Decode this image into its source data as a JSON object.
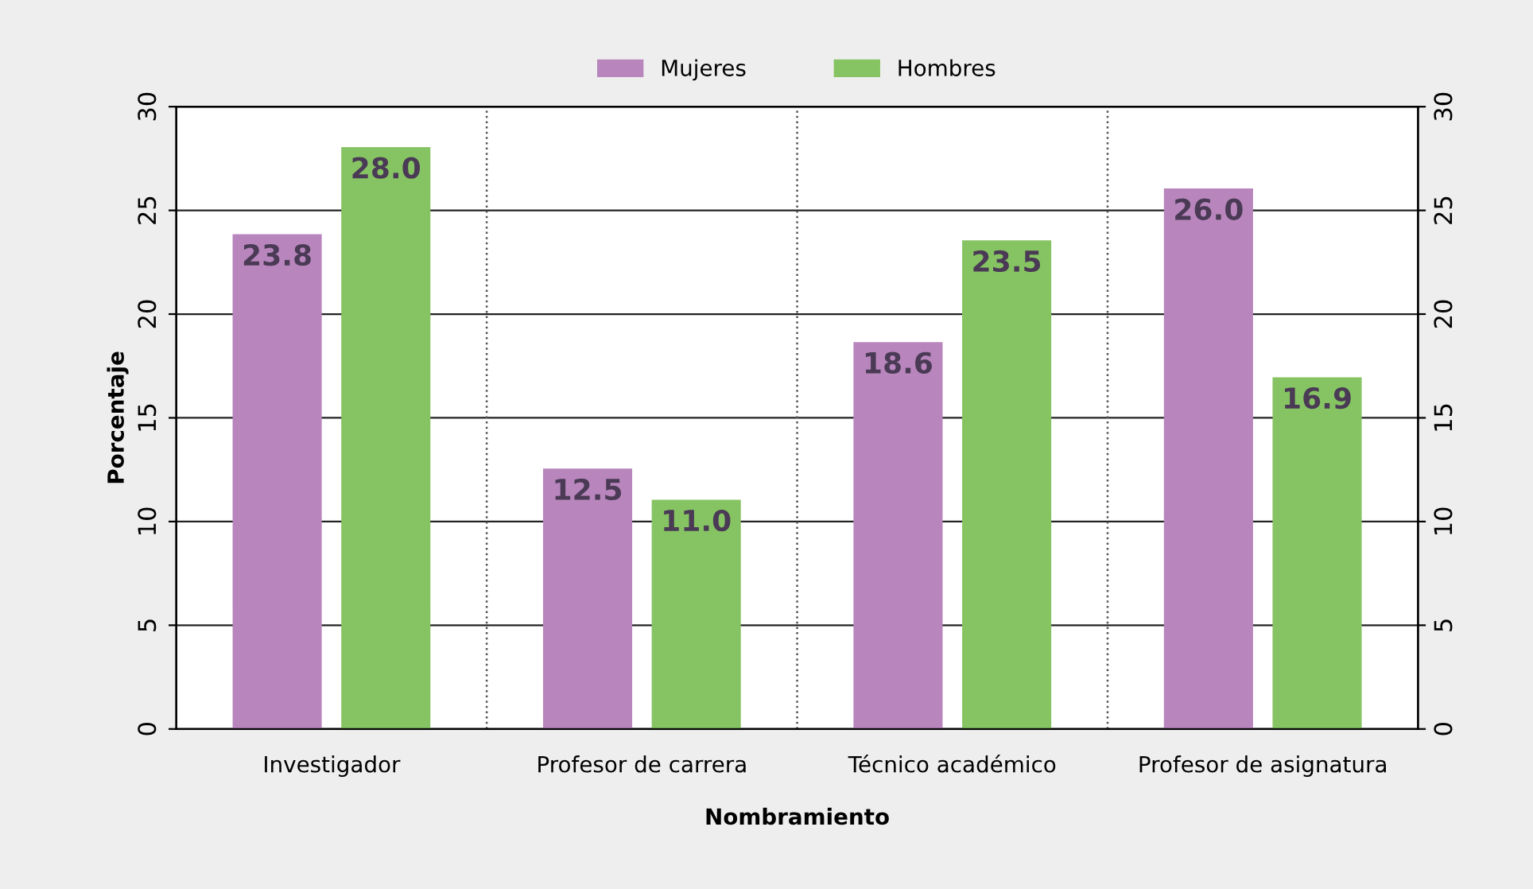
{
  "chart_data": {
    "type": "bar",
    "xlabel": "Nombramiento",
    "ylabel": "Porcentaje",
    "categories": [
      "Investigador",
      "Profesor de carrera",
      "Técnico académico",
      "Profesor de asignatura"
    ],
    "series": [
      {
        "name": "Mujeres",
        "color": "#b886bd",
        "values": [
          23.8,
          12.5,
          18.6,
          26.0
        ],
        "value_labels": [
          "23.8",
          "12.5",
          "18.6",
          "26.0"
        ]
      },
      {
        "name": "Hombres",
        "color": "#86c463",
        "values": [
          28.0,
          11.0,
          23.5,
          16.9
        ],
        "value_labels": [
          "28.0",
          "11.0",
          "23.5",
          "16.9"
        ]
      }
    ],
    "ylim": [
      0,
      30
    ],
    "yticks": [
      0,
      5,
      10,
      15,
      20,
      25,
      30
    ],
    "y2lim": [
      0,
      30
    ],
    "y2ticks": [
      0,
      5,
      10,
      15,
      20,
      25,
      30
    ],
    "grid": "y",
    "legend": "top"
  }
}
